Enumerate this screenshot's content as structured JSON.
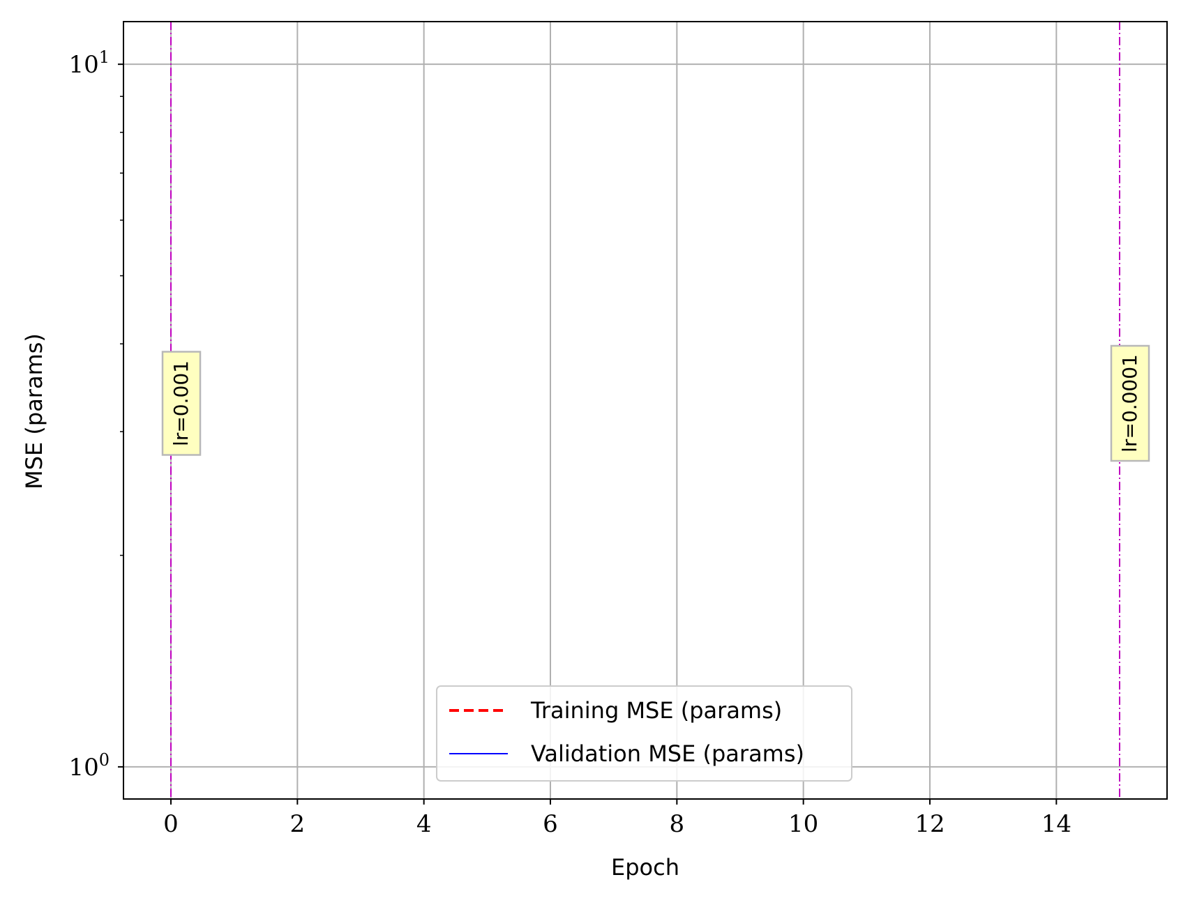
{
  "chart_data": {
    "type": "line",
    "title": "",
    "xlabel": "Epoch",
    "ylabel": "MSE (params)",
    "xlim": [
      -0.75,
      15.75
    ],
    "ylim": [
      0.9,
      11.5
    ],
    "yscale": "log",
    "grid": true,
    "x_ticks": [
      0,
      2,
      4,
      6,
      8,
      10,
      12,
      14
    ],
    "x_tick_labels": [
      "0",
      "2",
      "4",
      "6",
      "8",
      "10",
      "12",
      "14"
    ],
    "y_ticks": [
      1,
      10
    ],
    "y_tick_labels": [
      {
        "base": "10",
        "exp": "0"
      },
      {
        "base": "10",
        "exp": "1"
      }
    ],
    "series": [
      {
        "name": "Training MSE (params)",
        "color": "#ff0000",
        "style": "dashed",
        "x": [],
        "y": []
      },
      {
        "name": "Validation MSE (params)",
        "color": "#0000ff",
        "style": "solid",
        "x": [],
        "y": []
      }
    ],
    "vlines": [
      {
        "x": 0,
        "label": "lr=0.001",
        "color": "#bf00bf"
      },
      {
        "x": 15,
        "label": "lr=0.0001",
        "color": "#bf00bf"
      }
    ],
    "legend": {
      "placement": "lower center"
    }
  }
}
